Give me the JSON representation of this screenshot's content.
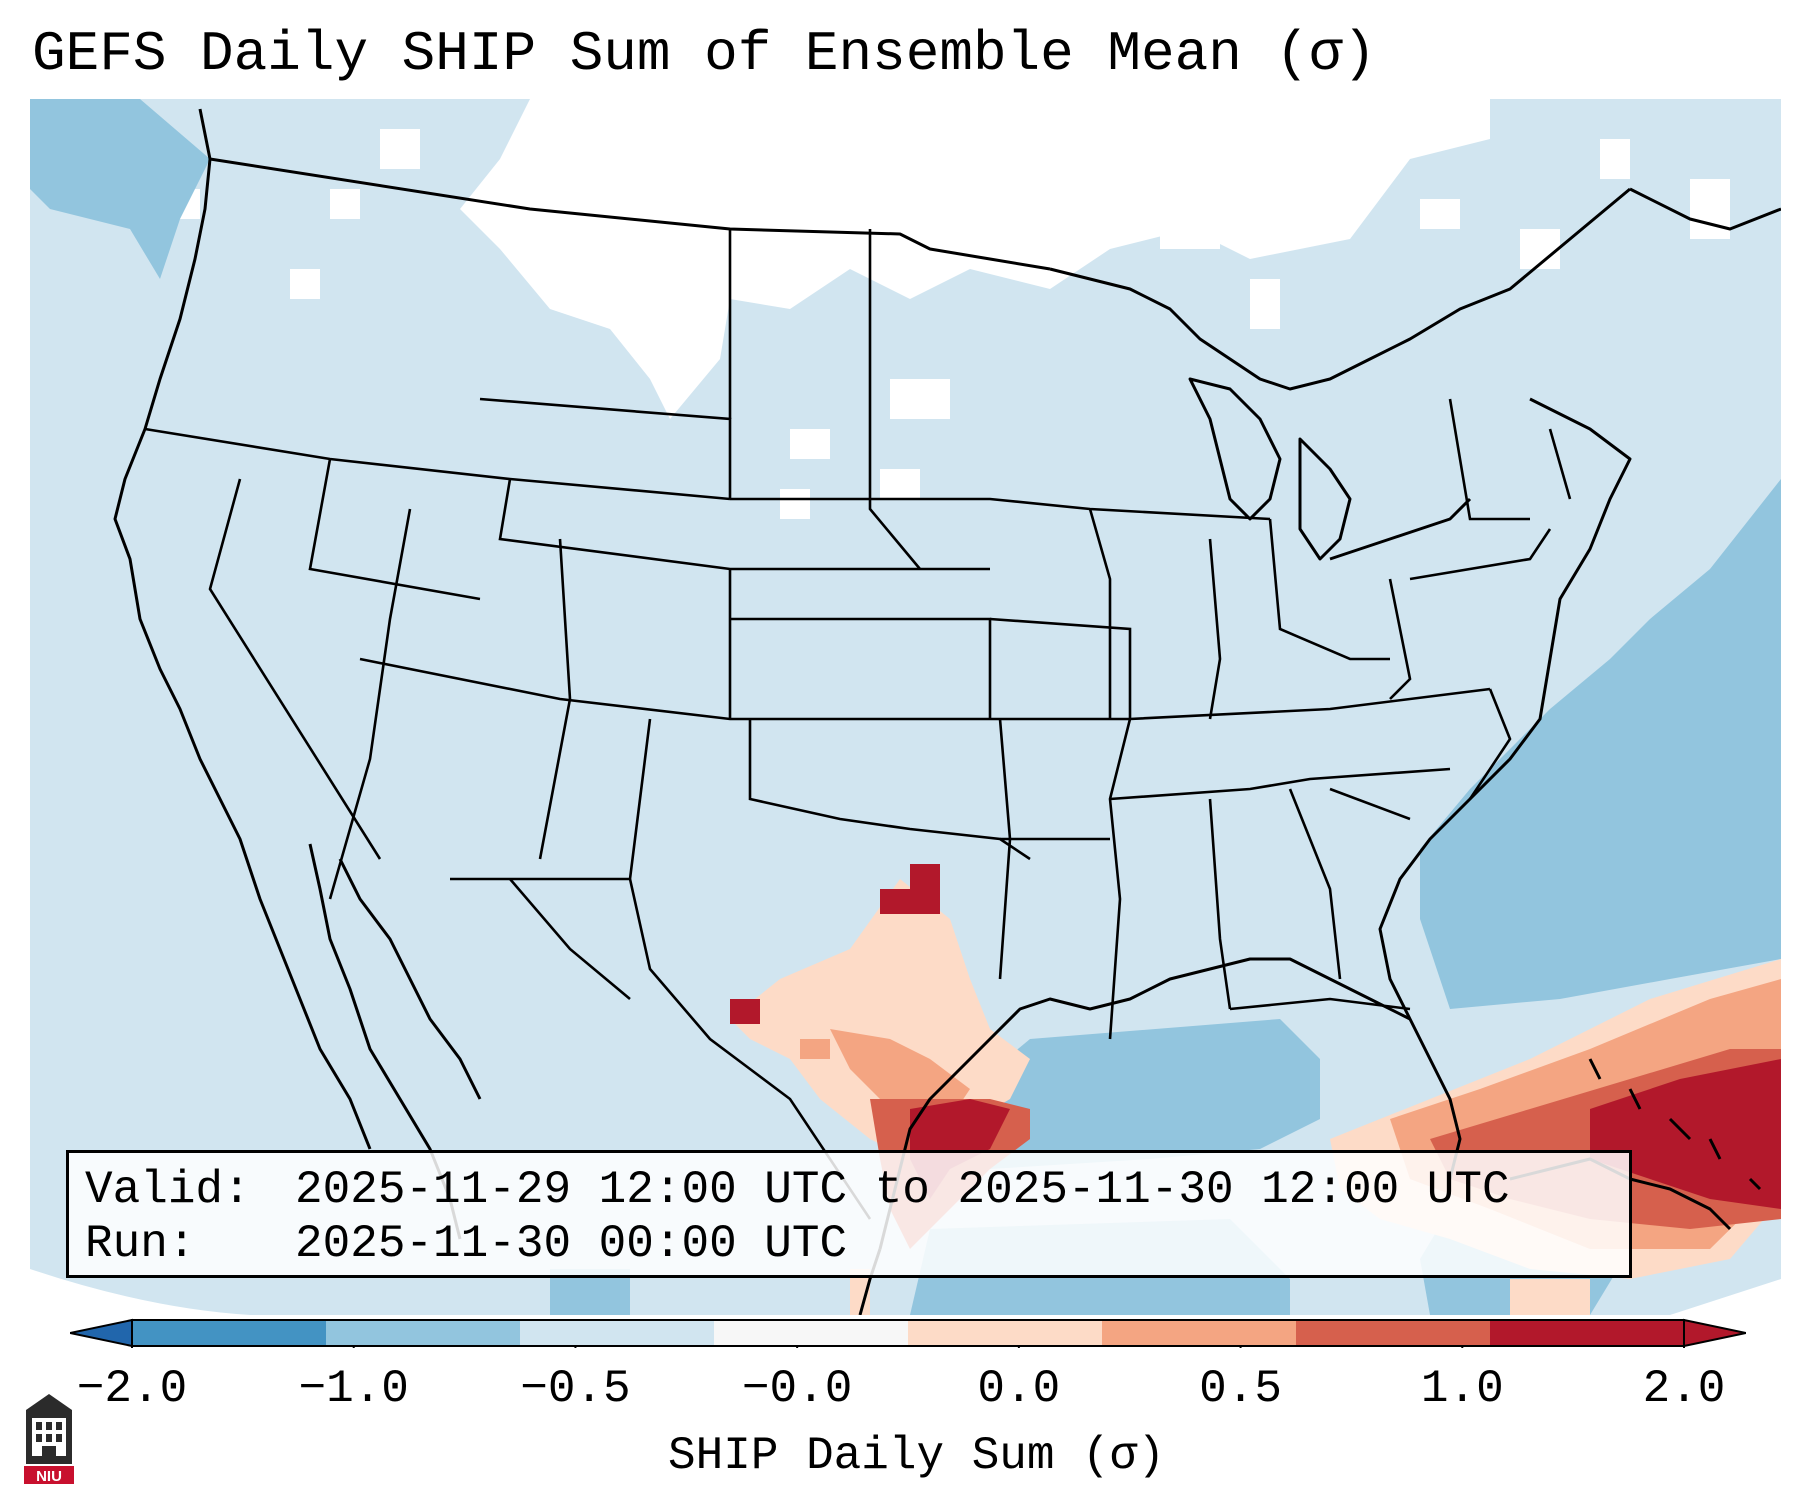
{
  "title": "GEFS Daily SHIP Sum of Ensemble Mean (σ)",
  "info": {
    "valid_label": "Valid:",
    "valid_value": "2025-11-29 12:00 UTC to 2025-11-30 12:00 UTC",
    "run_label": "Run:",
    "run_value": "2025-11-30 00:00 UTC"
  },
  "colorbar": {
    "label": "SHIP Daily Sum (σ)",
    "ticks": [
      "−2.0",
      "−1.0",
      "−0.5",
      "−0.0",
      "0.0",
      "0.5",
      "1.0",
      "2.0"
    ],
    "colors": [
      "#4393c3",
      "#92c5de",
      "#d1e5f0",
      "#f7f7f7",
      "#fddbc7",
      "#f4a582",
      "#d6604d",
      "#b2182b"
    ],
    "extend_low_color": "#2166ac",
    "extend_high_color": "#b2182b"
  },
  "logo": {
    "text": "NIU",
    "icon": "niu-logo-icon"
  }
}
